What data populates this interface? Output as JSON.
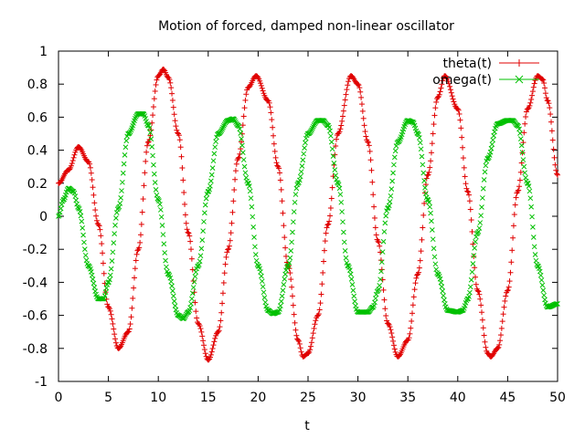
{
  "chart_data": {
    "type": "line",
    "title": "Motion of forced, damped non-linear oscillator",
    "xlabel": "t",
    "ylabel": "",
    "xlim": [
      0,
      50
    ],
    "ylim": [
      -1,
      1
    ],
    "xticks": [
      "0",
      "5",
      "10",
      "15",
      "20",
      "25",
      "30",
      "35",
      "40",
      "45",
      "50"
    ],
    "yticks": [
      "-1",
      "-0.8",
      "-0.6",
      "-0.4",
      "-0.2",
      "0",
      "0.2",
      "0.4",
      "0.6",
      "0.8",
      "1"
    ],
    "grid": false,
    "legend_position": "top-right",
    "series": [
      {
        "name": "theta(t)",
        "color": "#e00000",
        "marker": "plus",
        "x": [
          0,
          1,
          2,
          3,
          4,
          5,
          6,
          7,
          8,
          9,
          10,
          10.5,
          11,
          12,
          13,
          14,
          15,
          16,
          17,
          18,
          19,
          19.8,
          21,
          22,
          23,
          24,
          24.5,
          25,
          26,
          27,
          28,
          29.3,
          30,
          31,
          32,
          33,
          34,
          35,
          36,
          37,
          38,
          38.7,
          40,
          41,
          42,
          43,
          43.3,
          44,
          45,
          46,
          47,
          48,
          48.5,
          49,
          50
        ],
        "y": [
          0.2,
          0.28,
          0.42,
          0.33,
          -0.05,
          -0.55,
          -0.8,
          -0.7,
          -0.2,
          0.45,
          0.85,
          0.89,
          0.84,
          0.5,
          -0.1,
          -0.65,
          -0.87,
          -0.7,
          -0.2,
          0.35,
          0.78,
          0.85,
          0.7,
          0.3,
          -0.3,
          -0.75,
          -0.85,
          -0.83,
          -0.6,
          -0.05,
          0.5,
          0.85,
          0.8,
          0.45,
          -0.15,
          -0.65,
          -0.85,
          -0.75,
          -0.35,
          0.25,
          0.72,
          0.85,
          0.65,
          0.15,
          -0.45,
          -0.83,
          -0.85,
          -0.8,
          -0.45,
          0.15,
          0.65,
          0.85,
          0.83,
          0.7,
          0.25
        ]
      },
      {
        "name": "omega(t)",
        "color": "#00c000",
        "marker": "cross",
        "x": [
          0,
          0.5,
          1,
          1.5,
          2,
          3,
          4,
          4.5,
          5,
          6,
          7,
          8,
          8.5,
          9,
          10,
          11,
          12,
          12.5,
          13,
          14,
          15,
          16,
          17,
          17.5,
          18,
          19,
          20,
          21,
          21.5,
          22,
          23,
          24,
          25,
          26,
          26.5,
          27,
          28,
          29,
          30,
          31,
          31.5,
          32,
          33,
          34,
          35,
          35.5,
          36,
          37,
          38,
          39,
          40,
          40.5,
          41,
          42,
          43,
          44,
          45,
          45.5,
          46,
          47,
          48,
          49,
          50
        ],
        "y": [
          0,
          0.1,
          0.17,
          0.15,
          0.05,
          -0.3,
          -0.5,
          -0.5,
          -0.4,
          0.05,
          0.5,
          0.62,
          0.62,
          0.55,
          0.1,
          -0.35,
          -0.6,
          -0.62,
          -0.58,
          -0.3,
          0.15,
          0.5,
          0.58,
          0.59,
          0.55,
          0.2,
          -0.3,
          -0.57,
          -0.59,
          -0.58,
          -0.3,
          0.2,
          0.5,
          0.58,
          0.58,
          0.55,
          0.2,
          -0.3,
          -0.58,
          -0.58,
          -0.55,
          -0.45,
          0.05,
          0.45,
          0.58,
          0.57,
          0.5,
          0.1,
          -0.35,
          -0.57,
          -0.58,
          -0.57,
          -0.5,
          -0.1,
          0.35,
          0.56,
          0.58,
          0.58,
          0.55,
          0.2,
          -0.3,
          -0.55,
          -0.53
        ]
      }
    ]
  }
}
